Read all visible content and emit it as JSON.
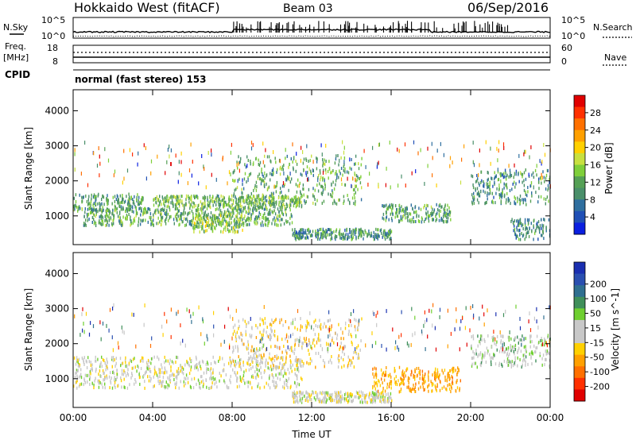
{
  "header": {
    "radar": "Hokkaido West (fitACF)",
    "beam": "Beam 03",
    "date": "06/Sep/2016"
  },
  "noise_panel": {
    "left_label": "N.Sky",
    "right_label": "N.Search",
    "left_top_tick": "10^5",
    "left_bottom_tick": "10^0",
    "right_top_tick": "10^5",
    "right_bottom_tick": "10^0"
  },
  "freq_panel": {
    "left_label_1": "Freq.",
    "left_label_2": "[MHz]",
    "left_top_tick": "18",
    "left_bottom_tick": "8",
    "right_label": "Nave",
    "right_top_tick": "60",
    "right_bottom_tick": "0"
  },
  "cpid": {
    "label": "CPID",
    "value": "normal (fast stereo) 153"
  },
  "chart_data": [
    {
      "type": "heatmap",
      "panel": "power",
      "ylabel": "Slant Range [km]",
      "y_ticks": [
        "1000",
        "2000",
        "3000",
        "4000"
      ],
      "ylim": [
        180,
        4600
      ],
      "x_ticks": [
        "00:00",
        "04:00",
        "08:00",
        "12:00",
        "16:00",
        "20:00",
        "00:00"
      ],
      "xlim_hours": [
        0,
        24
      ],
      "colorbar": {
        "label": "Power [dB]",
        "ticks": [
          "4",
          "8",
          "12",
          "16",
          "20",
          "24",
          "28"
        ],
        "range": [
          0,
          30
        ],
        "colors": [
          "#0a1fe0",
          "#1f4fb5",
          "#2f6f9f",
          "#4a8f6a",
          "#55a055",
          "#7fcf3a",
          "#c8e040",
          "#ffd000",
          "#ffa000",
          "#ff7000",
          "#ff3000",
          "#e00000"
        ]
      },
      "echo_bands": [
        {
          "t0": 0.0,
          "t1": 3.5,
          "r0": 1100,
          "r1": 1600,
          "pmean": 9
        },
        {
          "t0": 0.5,
          "t1": 11.0,
          "r0": 700,
          "r1": 1200,
          "pmean": 10
        },
        {
          "t0": 4.0,
          "t1": 11.5,
          "r0": 1200,
          "r1": 1550,
          "pmean": 11
        },
        {
          "t0": 8.0,
          "t1": 14.5,
          "r0": 1300,
          "r1": 2700,
          "pmean": 10
        },
        {
          "t0": 6.0,
          "t1": 8.5,
          "r0": 500,
          "r1": 1000,
          "pmean": 12
        },
        {
          "t0": 11.0,
          "t1": 16.0,
          "r0": 300,
          "r1": 600,
          "pmean": 8
        },
        {
          "t0": 15.5,
          "t1": 19.0,
          "r0": 800,
          "r1": 1300,
          "pmean": 9
        },
        {
          "t0": 20.0,
          "t1": 24.0,
          "r0": 1300,
          "r1": 2300,
          "pmean": 8
        },
        {
          "t0": 22.0,
          "t1": 24.0,
          "r0": 300,
          "r1": 900,
          "pmean": 7
        }
      ]
    },
    {
      "type": "heatmap",
      "panel": "velocity",
      "ylabel": "Slant Range [km]",
      "y_ticks": [
        "1000",
        "2000",
        "3000",
        "4000"
      ],
      "ylim": [
        180,
        4600
      ],
      "x_ticks": [
        "00:00",
        "04:00",
        "08:00",
        "12:00",
        "16:00",
        "20:00",
        "00:00"
      ],
      "xlabel": "Time UT",
      "xlim_hours": [
        0,
        24
      ],
      "colorbar": {
        "label": "Velocity [m s^-1]",
        "ticks": [
          "200",
          "100",
          "50",
          "15",
          "-15",
          "-50",
          "-100",
          "-200"
        ],
        "range": [
          -250,
          250
        ],
        "colors": [
          "#1a2fb0",
          "#2a4fb0",
          "#2f6f90",
          "#3f8f5a",
          "#6fcf30",
          "#c8c8c8",
          "#c8c8c8",
          "#ffd000",
          "#ffa000",
          "#ff7000",
          "#ff3000",
          "#e00000"
        ]
      },
      "echo_bands": [
        {
          "t0": 0.0,
          "t1": 11.5,
          "r0": 700,
          "r1": 1600,
          "vclass": "low"
        },
        {
          "t0": 8.0,
          "t1": 14.5,
          "r0": 1300,
          "r1": 2700,
          "vclass": "low-neg"
        },
        {
          "t0": 15.0,
          "t1": 19.5,
          "r0": 600,
          "r1": 1300,
          "vclass": "neg"
        },
        {
          "t0": 20.0,
          "t1": 24.0,
          "r0": 1300,
          "r1": 2200,
          "vclass": "low-pos"
        },
        {
          "t0": 11.0,
          "t1": 16.0,
          "r0": 300,
          "r1": 600,
          "vclass": "low"
        }
      ]
    }
  ]
}
